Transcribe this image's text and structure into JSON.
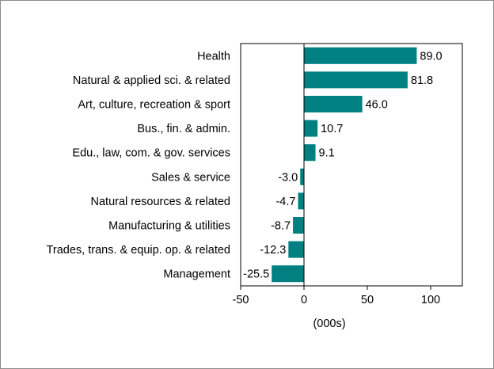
{
  "chart_data": {
    "type": "bar",
    "orientation": "horizontal",
    "title": "",
    "xlabel": "(000s)",
    "ylabel": "",
    "categories": [
      "Health",
      "Natural & applied sci. & related",
      "Art, culture, recreation & sport",
      "Bus., fin. & admin.",
      "Edu., law, com. & gov. services",
      "Sales & service",
      "Natural resources & related",
      "Manufacturing & utilities",
      "Trades, trans. & equip. op. & related",
      "Management"
    ],
    "values": [
      89.0,
      81.8,
      46.0,
      10.7,
      9.1,
      -3.0,
      -4.7,
      -8.7,
      -12.3,
      -25.5
    ],
    "data_labels": [
      "89.0",
      "81.8",
      "46.0",
      "10.7",
      "9.1",
      "-3.0",
      "-4.7",
      "-8.7",
      "-12.3",
      "-25.5"
    ],
    "xlim": [
      -50,
      125
    ],
    "xticks": [
      -50,
      0,
      50,
      100
    ],
    "xtick_labels": [
      "-50",
      "0",
      "50",
      "100"
    ],
    "grid": false,
    "legend": "none",
    "bar_color": "#008080"
  }
}
